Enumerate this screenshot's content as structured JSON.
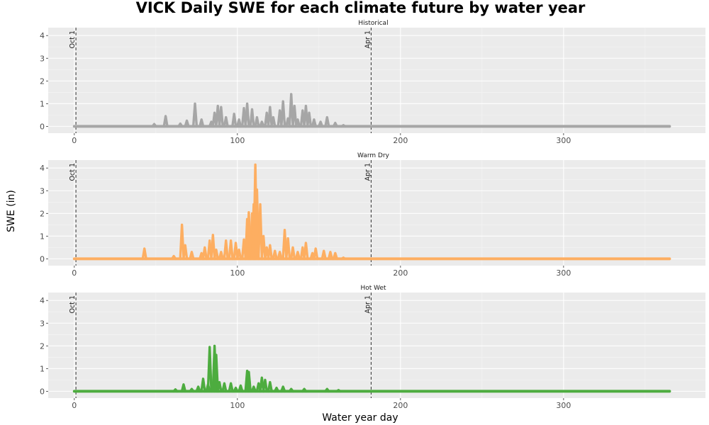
{
  "chart_data": {
    "type": "line",
    "title": "VICK Daily SWE for each climate future by water year",
    "xlabel": "Water year day",
    "ylabel": "SWE (in)",
    "xlim": [
      -16,
      387
    ],
    "ylim": [
      -0.3,
      4.35
    ],
    "x_ticks": [
      0,
      100,
      200,
      300
    ],
    "y_ticks": [
      0,
      1,
      2,
      3,
      4
    ],
    "grid": true,
    "reference_lines": [
      {
        "x": 1,
        "label": "Oct 1"
      },
      {
        "x": 182,
        "label": "Apr 1"
      }
    ],
    "panels": [
      {
        "name": "Historical",
        "color": "#a6a6a6",
        "peaks": [
          [
            49,
            0.1
          ],
          [
            56,
            0.45
          ],
          [
            65,
            0.12
          ],
          [
            69,
            0.25
          ],
          [
            74,
            1.0
          ],
          [
            78,
            0.3
          ],
          [
            84,
            0.2
          ],
          [
            86,
            0.6
          ],
          [
            88,
            0.9
          ],
          [
            90,
            0.85
          ],
          [
            93,
            0.4
          ],
          [
            98,
            0.55
          ],
          [
            101,
            0.3
          ],
          [
            104,
            0.8
          ],
          [
            106,
            1.0
          ],
          [
            109,
            0.75
          ],
          [
            112,
            0.4
          ],
          [
            115,
            0.2
          ],
          [
            118,
            0.6
          ],
          [
            120,
            0.85
          ],
          [
            122,
            0.4
          ],
          [
            126,
            0.7
          ],
          [
            128,
            1.1
          ],
          [
            131,
            0.35
          ],
          [
            133,
            1.42
          ],
          [
            135,
            0.9
          ],
          [
            137,
            0.3
          ],
          [
            140,
            0.7
          ],
          [
            142,
            0.9
          ],
          [
            144,
            0.6
          ],
          [
            147,
            0.3
          ],
          [
            151,
            0.2
          ],
          [
            155,
            0.4
          ],
          [
            160,
            0.15
          ],
          [
            165,
            0.05
          ]
        ]
      },
      {
        "name": "Warm Dry",
        "color": "#fdae61",
        "peaks": [
          [
            43,
            0.45
          ],
          [
            61,
            0.12
          ],
          [
            66,
            1.5
          ],
          [
            68,
            0.6
          ],
          [
            72,
            0.3
          ],
          [
            78,
            0.25
          ],
          [
            80,
            0.5
          ],
          [
            83,
            0.8
          ],
          [
            85,
            1.05
          ],
          [
            87,
            0.4
          ],
          [
            90,
            0.3
          ],
          [
            93,
            0.8
          ],
          [
            96,
            0.8
          ],
          [
            99,
            0.7
          ],
          [
            101,
            0.4
          ],
          [
            104,
            0.85
          ],
          [
            106,
            1.75
          ],
          [
            107,
            2.05
          ],
          [
            109,
            2.0
          ],
          [
            110,
            2.4
          ],
          [
            111,
            4.15
          ],
          [
            112,
            3.05
          ],
          [
            114,
            2.4
          ],
          [
            116,
            1.0
          ],
          [
            118,
            0.5
          ],
          [
            120,
            0.6
          ],
          [
            123,
            0.35
          ],
          [
            126,
            0.3
          ],
          [
            129,
            1.27
          ],
          [
            131,
            0.9
          ],
          [
            134,
            0.5
          ],
          [
            137,
            0.3
          ],
          [
            140,
            0.5
          ],
          [
            142,
            0.7
          ],
          [
            146,
            0.25
          ],
          [
            148,
            0.45
          ],
          [
            153,
            0.35
          ],
          [
            157,
            0.3
          ],
          [
            160,
            0.25
          ],
          [
            165,
            0.05
          ]
        ]
      },
      {
        "name": "Hot Wet",
        "color": "#4dac3f",
        "peaks": [
          [
            62,
            0.08
          ],
          [
            67,
            0.3
          ],
          [
            72,
            0.1
          ],
          [
            76,
            0.2
          ],
          [
            79,
            0.55
          ],
          [
            82,
            0.3
          ],
          [
            83,
            1.95
          ],
          [
            86,
            2.0
          ],
          [
            87,
            1.6
          ],
          [
            89,
            0.4
          ],
          [
            92,
            0.35
          ],
          [
            96,
            0.35
          ],
          [
            99,
            0.15
          ],
          [
            102,
            0.25
          ],
          [
            106,
            0.9
          ],
          [
            107,
            0.85
          ],
          [
            110,
            0.2
          ],
          [
            113,
            0.35
          ],
          [
            115,
            0.6
          ],
          [
            117,
            0.5
          ],
          [
            120,
            0.4
          ],
          [
            124,
            0.15
          ],
          [
            128,
            0.2
          ],
          [
            133,
            0.1
          ],
          [
            141,
            0.1
          ],
          [
            155,
            0.1
          ],
          [
            162,
            0.05
          ]
        ]
      }
    ]
  }
}
